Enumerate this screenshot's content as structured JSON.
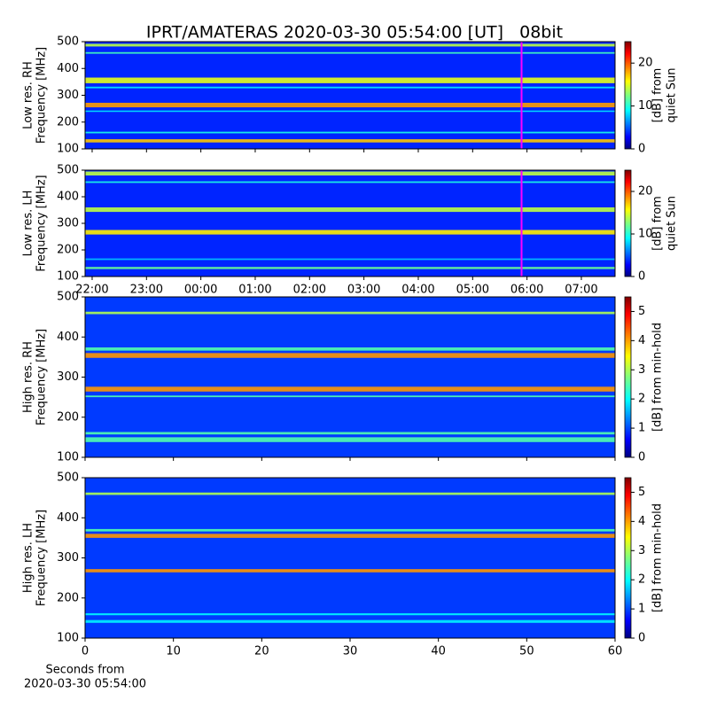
{
  "title": "IPRT/AMATERAS 2020-03-30 05:54:00 [UT]   08bit",
  "chart_data": [
    {
      "type": "heatmap",
      "ylabel": [
        "Low res. RH",
        "Frequency [MHz]"
      ],
      "xlim": [
        21.87,
        31.62
      ],
      "xticks": [
        22,
        23,
        24,
        25,
        26,
        27,
        28,
        29,
        30,
        31
      ],
      "xticklabels": false,
      "ylim": [
        100,
        500
      ],
      "yticks": [
        100,
        200,
        300,
        400,
        500
      ],
      "colormap": "jet",
      "clim": [
        0,
        25
      ],
      "cticks": [
        0,
        10,
        20
      ],
      "clabel": [
        "[dB] from",
        "quiet Sun"
      ],
      "background_level": 4,
      "bands": [
        {
          "freq": [
            482,
            492
          ],
          "level": 14
        },
        {
          "freq": [
            455,
            461
          ],
          "level": 11
        },
        {
          "freq": [
            345,
            366
          ],
          "level": 15
        },
        {
          "freq": [
            326,
            332
          ],
          "level": 9
        },
        {
          "freq": [
            255,
            272
          ],
          "level": 18
        },
        {
          "freq": [
            238,
            243
          ],
          "level": 9
        },
        {
          "freq": [
            158,
            164
          ],
          "level": 10
        },
        {
          "freq": [
            124,
            136
          ],
          "level": 17
        }
      ],
      "marker": {
        "x": 29.9,
        "color": "#ff00ff"
      }
    },
    {
      "type": "heatmap",
      "ylabel": [
        "Low res. LH",
        "Frequency [MHz]"
      ],
      "xlim": [
        21.87,
        31.62
      ],
      "xticks": [
        {
          "value": 22,
          "label": "22:00"
        },
        {
          "value": 23,
          "label": "23:00"
        },
        {
          "value": 24,
          "label": "00:00"
        },
        {
          "value": 25,
          "label": "01:00"
        },
        {
          "value": 26,
          "label": "02:00"
        },
        {
          "value": 27,
          "label": "03:00"
        },
        {
          "value": 28,
          "label": "04:00"
        },
        {
          "value": 29,
          "label": "05:00"
        },
        {
          "value": 30,
          "label": "06:00"
        },
        {
          "value": 31,
          "label": "07:00"
        }
      ],
      "ylim": [
        100,
        500
      ],
      "yticks": [
        100,
        200,
        300,
        400,
        500
      ],
      "colormap": "jet",
      "clim": [
        0,
        25
      ],
      "cticks": [
        0,
        10,
        20
      ],
      "clabel": [
        "[dB] from",
        "quiet Sun"
      ],
      "background_level": 4,
      "bands": [
        {
          "freq": [
            480,
            495
          ],
          "level": 14
        },
        {
          "freq": [
            452,
            458
          ],
          "level": 10
        },
        {
          "freq": [
            343,
            360
          ],
          "level": 14
        },
        {
          "freq": [
            258,
            275
          ],
          "level": 16
        },
        {
          "freq": [
            162,
            168
          ],
          "level": 8
        },
        {
          "freq": [
            128,
            136
          ],
          "level": 12
        }
      ],
      "marker": {
        "x": 29.9,
        "color": "#ff00ff"
      }
    },
    {
      "type": "heatmap",
      "ylabel": [
        "High res. RH",
        "Frequency [MHz]"
      ],
      "xlim": [
        0,
        60
      ],
      "xticks": [
        0,
        10,
        20,
        30,
        40,
        50,
        60
      ],
      "xticklabels": false,
      "ylim": [
        100,
        500
      ],
      "yticks": [
        100,
        200,
        300,
        400,
        500
      ],
      "colormap": "jet",
      "clim": [
        0,
        5.5
      ],
      "cticks": [
        0,
        1,
        2,
        3,
        4,
        5
      ],
      "clabel": [
        "[dB] from min-hold"
      ],
      "background_level": 1,
      "bands": [
        {
          "freq": [
            457,
            463
          ],
          "level": 3
        },
        {
          "freq": [
            366,
            374
          ],
          "level": 2.5
        },
        {
          "freq": [
            348,
            360
          ],
          "level": 4
        },
        {
          "freq": [
            264,
            276
          ],
          "level": 4
        },
        {
          "freq": [
            250,
            254
          ],
          "level": 2.5
        },
        {
          "freq": [
            157,
            163
          ],
          "level": 2.5
        },
        {
          "freq": [
            138,
            150
          ],
          "level": 2.5
        }
      ]
    },
    {
      "type": "heatmap",
      "ylabel": [
        "High res. LH",
        "Frequency [MHz]"
      ],
      "xlabel": [
        "Seconds from",
        "2020-03-30 05:54:00"
      ],
      "xlim": [
        0,
        60
      ],
      "xticks": [
        0,
        10,
        20,
        30,
        40,
        50,
        60
      ],
      "ylim": [
        100,
        500
      ],
      "yticks": [
        100,
        200,
        300,
        400,
        500
      ],
      "colormap": "jet",
      "clim": [
        0,
        5.5
      ],
      "cticks": [
        0,
        1,
        2,
        3,
        4,
        5
      ],
      "clabel": [
        "[dB] from min-hold"
      ],
      "background_level": 1,
      "bands": [
        {
          "freq": [
            457,
            463
          ],
          "level": 3
        },
        {
          "freq": [
            366,
            372
          ],
          "level": 2.5
        },
        {
          "freq": [
            350,
            360
          ],
          "level": 4
        },
        {
          "freq": [
            264,
            272
          ],
          "level": 4
        },
        {
          "freq": [
            157,
            162
          ],
          "level": 2
        },
        {
          "freq": [
            138,
            145
          ],
          "level": 2
        }
      ]
    }
  ]
}
